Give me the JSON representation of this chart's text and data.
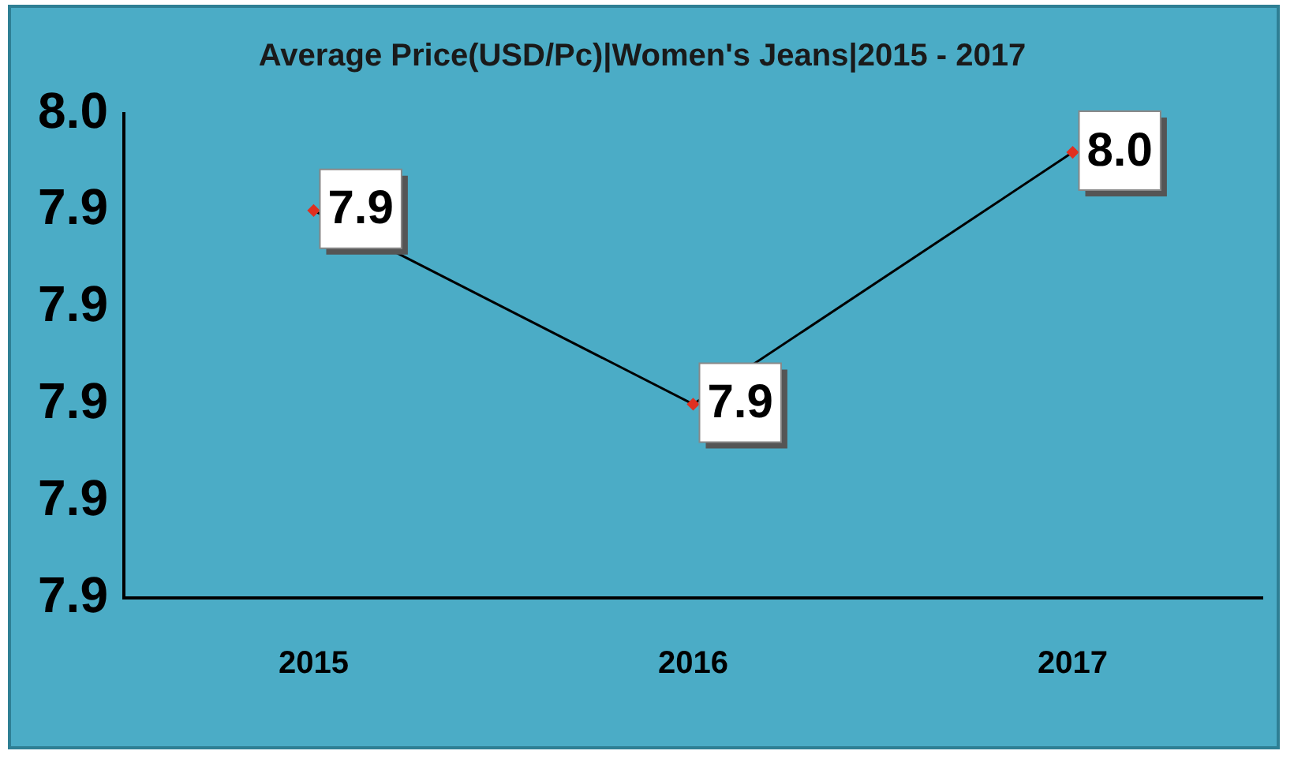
{
  "chart_data": {
    "type": "line",
    "title": "Average Price(USD/Pc)|Women's Jeans|2015 - 2017",
    "categories": [
      "2015",
      "2016",
      "2017"
    ],
    "series": [
      {
        "color": "#000000",
        "values": [
          7.945,
          7.925,
          7.951
        ],
        "value_labels": [
          "7.9",
          "7.9",
          "8.0"
        ]
      }
    ],
    "ylim": [
      7.905,
      7.955
    ],
    "yticks": [
      {
        "value": 7.905,
        "label": "7.9"
      },
      {
        "value": 7.915,
        "label": "7.9"
      },
      {
        "value": 7.925,
        "label": "7.9"
      },
      {
        "value": 7.935,
        "label": "7.9"
      },
      {
        "value": 7.945,
        "label": "7.9"
      },
      {
        "value": 7.955,
        "label": "8.0"
      }
    ],
    "grid": false,
    "legend": false,
    "marker": "diamond",
    "line_style": "solid"
  }
}
